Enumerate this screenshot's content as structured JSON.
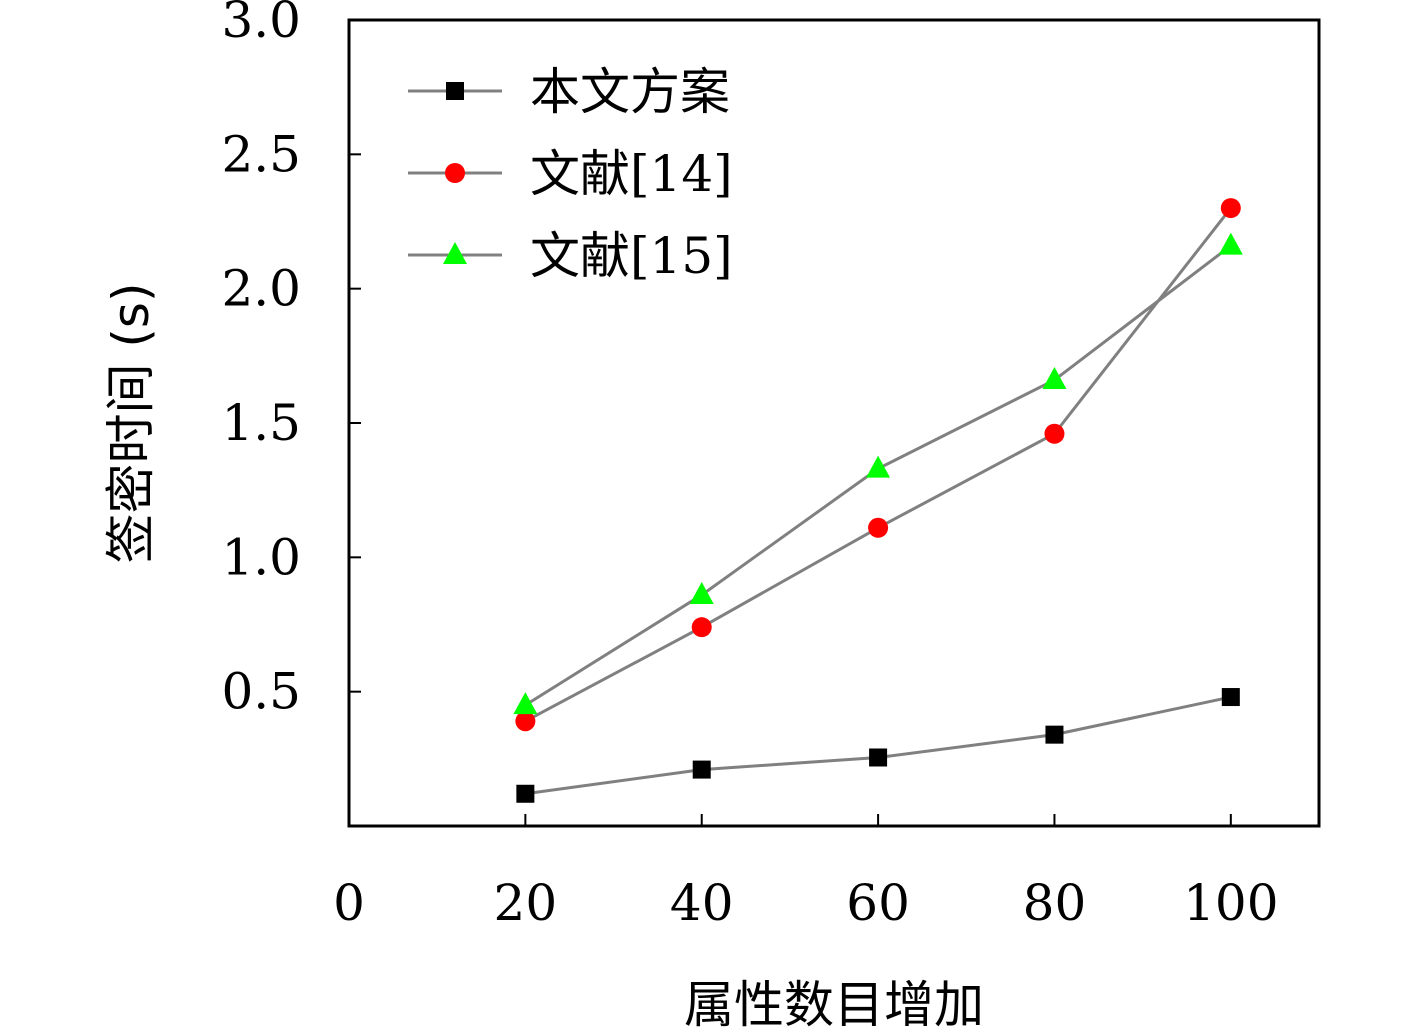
{
  "chart_data": {
    "type": "line",
    "title": "",
    "xlabel": "属性数目增加",
    "ylabel": "签密时间 (s)",
    "x": [
      20,
      40,
      60,
      80,
      100
    ],
    "xlim": [
      0,
      110
    ],
    "ylim": [
      0,
      3.0
    ],
    "xticks": [
      0,
      20,
      40,
      60,
      80,
      100
    ],
    "xtick_labels": [
      "0",
      "20",
      "40",
      "60",
      "80",
      "100"
    ],
    "yticks": [
      0.5,
      1.0,
      1.5,
      2.0,
      2.5,
      3.0
    ],
    "ytick_labels": [
      "0.5",
      "1.0",
      "1.5",
      "2.0",
      "2.5",
      "3.0"
    ],
    "grid": false,
    "legend_position": "top-left",
    "line_color": "#808080",
    "series": [
      {
        "name": "本文方案",
        "marker": "square",
        "color": "#000000",
        "values": [
          0.12,
          0.21,
          0.255,
          0.34,
          0.48
        ]
      },
      {
        "name": "文献[14]",
        "marker": "circle",
        "color": "#ff0000",
        "values": [
          0.39,
          0.74,
          1.11,
          1.46,
          2.3
        ]
      },
      {
        "name": "文献[15]",
        "marker": "triangle",
        "color": "#00ff00",
        "values": [
          0.45,
          0.86,
          1.33,
          1.66,
          2.16
        ]
      }
    ]
  }
}
